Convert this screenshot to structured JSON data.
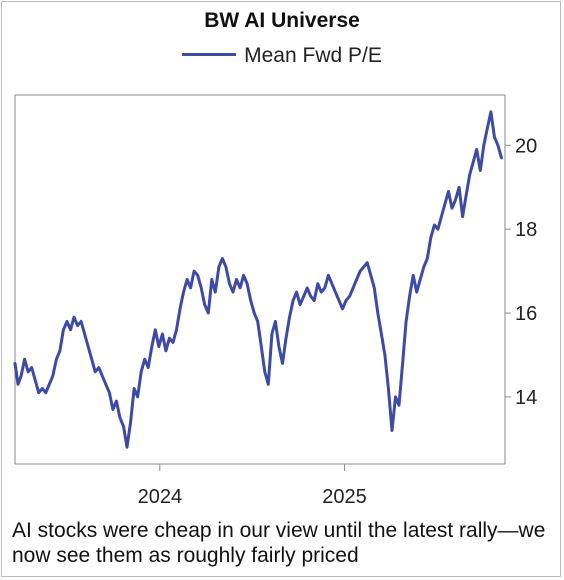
{
  "chart_data": {
    "type": "line",
    "title": "BW AI Universe",
    "xlabel": "",
    "ylabel": "",
    "legend": {
      "position": "top-center"
    },
    "grid": false,
    "xlim": [
      "2023-03-20",
      "2025-11-15"
    ],
    "ylim": [
      12.4,
      21.2
    ],
    "x_ticks": [
      {
        "date": "2024-01-01",
        "label": "2024"
      },
      {
        "date": "2025-01-01",
        "label": "2025"
      }
    ],
    "y_ticks": [
      {
        "value": 14,
        "label": "14"
      },
      {
        "value": 16,
        "label": "16"
      },
      {
        "value": 18,
        "label": "18"
      },
      {
        "value": 20,
        "label": "20"
      }
    ],
    "series": [
      {
        "name": "Mean Fwd P/E",
        "color": "#3d4aa6",
        "points": [
          [
            "2023-03-20",
            14.8
          ],
          [
            "2023-03-26",
            14.3
          ],
          [
            "2023-04-01",
            14.5
          ],
          [
            "2023-04-08",
            14.9
          ],
          [
            "2023-04-15",
            14.6
          ],
          [
            "2023-04-22",
            14.7
          ],
          [
            "2023-04-29",
            14.4
          ],
          [
            "2023-05-06",
            14.1
          ],
          [
            "2023-05-13",
            14.2
          ],
          [
            "2023-05-20",
            14.1
          ],
          [
            "2023-05-27",
            14.3
          ],
          [
            "2023-06-03",
            14.5
          ],
          [
            "2023-06-10",
            14.9
          ],
          [
            "2023-06-17",
            15.1
          ],
          [
            "2023-06-24",
            15.6
          ],
          [
            "2023-07-01",
            15.8
          ],
          [
            "2023-07-08",
            15.6
          ],
          [
            "2023-07-15",
            15.9
          ],
          [
            "2023-07-22",
            15.7
          ],
          [
            "2023-07-29",
            15.8
          ],
          [
            "2023-08-05",
            15.5
          ],
          [
            "2023-08-12",
            15.2
          ],
          [
            "2023-08-19",
            14.9
          ],
          [
            "2023-08-26",
            14.6
          ],
          [
            "2023-09-02",
            14.7
          ],
          [
            "2023-09-09",
            14.5
          ],
          [
            "2023-09-16",
            14.3
          ],
          [
            "2023-09-23",
            14.1
          ],
          [
            "2023-09-30",
            13.7
          ],
          [
            "2023-10-07",
            13.9
          ],
          [
            "2023-10-14",
            13.5
          ],
          [
            "2023-10-21",
            13.3
          ],
          [
            "2023-10-28",
            12.8
          ],
          [
            "2023-11-04",
            13.4
          ],
          [
            "2023-11-11",
            14.2
          ],
          [
            "2023-11-18",
            14.0
          ],
          [
            "2023-11-25",
            14.6
          ],
          [
            "2023-12-02",
            14.9
          ],
          [
            "2023-12-09",
            14.7
          ],
          [
            "2023-12-16",
            15.2
          ],
          [
            "2023-12-23",
            15.6
          ],
          [
            "2023-12-30",
            15.2
          ],
          [
            "2024-01-06",
            15.5
          ],
          [
            "2024-01-13",
            15.1
          ],
          [
            "2024-01-20",
            15.4
          ],
          [
            "2024-01-27",
            15.3
          ],
          [
            "2024-02-03",
            15.6
          ],
          [
            "2024-02-10",
            16.1
          ],
          [
            "2024-02-17",
            16.5
          ],
          [
            "2024-02-24",
            16.8
          ],
          [
            "2024-03-02",
            16.6
          ],
          [
            "2024-03-09",
            17.0
          ],
          [
            "2024-03-16",
            16.9
          ],
          [
            "2024-03-23",
            16.6
          ],
          [
            "2024-03-30",
            16.2
          ],
          [
            "2024-04-06",
            16.0
          ],
          [
            "2024-04-13",
            16.8
          ],
          [
            "2024-04-20",
            16.5
          ],
          [
            "2024-04-27",
            17.1
          ],
          [
            "2024-05-04",
            17.3
          ],
          [
            "2024-05-11",
            17.1
          ],
          [
            "2024-05-18",
            16.7
          ],
          [
            "2024-05-25",
            16.5
          ],
          [
            "2024-06-01",
            16.8
          ],
          [
            "2024-06-08",
            16.6
          ],
          [
            "2024-06-15",
            16.9
          ],
          [
            "2024-06-22",
            16.7
          ],
          [
            "2024-06-29",
            16.3
          ],
          [
            "2024-07-06",
            16.0
          ],
          [
            "2024-07-13",
            15.8
          ],
          [
            "2024-07-20",
            15.2
          ],
          [
            "2024-07-27",
            14.6
          ],
          [
            "2024-08-03",
            14.3
          ],
          [
            "2024-08-10",
            15.5
          ],
          [
            "2024-08-17",
            15.8
          ],
          [
            "2024-08-24",
            15.2
          ],
          [
            "2024-08-31",
            14.8
          ],
          [
            "2024-09-07",
            15.4
          ],
          [
            "2024-09-14",
            15.9
          ],
          [
            "2024-09-21",
            16.3
          ],
          [
            "2024-09-28",
            16.5
          ],
          [
            "2024-10-05",
            16.2
          ],
          [
            "2024-10-12",
            16.4
          ],
          [
            "2024-10-19",
            16.6
          ],
          [
            "2024-10-26",
            16.4
          ],
          [
            "2024-11-02",
            16.3
          ],
          [
            "2024-11-09",
            16.7
          ],
          [
            "2024-11-16",
            16.5
          ],
          [
            "2024-11-23",
            16.6
          ],
          [
            "2024-11-30",
            16.9
          ],
          [
            "2024-12-07",
            16.7
          ],
          [
            "2024-12-14",
            16.5
          ],
          [
            "2024-12-21",
            16.3
          ],
          [
            "2024-12-28",
            16.1
          ],
          [
            "2025-01-04",
            16.3
          ],
          [
            "2025-01-11",
            16.4
          ],
          [
            "2025-01-18",
            16.6
          ],
          [
            "2025-01-25",
            16.8
          ],
          [
            "2025-02-01",
            17.0
          ],
          [
            "2025-02-08",
            17.1
          ],
          [
            "2025-02-15",
            17.2
          ],
          [
            "2025-02-22",
            16.9
          ],
          [
            "2025-03-01",
            16.6
          ],
          [
            "2025-03-08",
            16.0
          ],
          [
            "2025-03-15",
            15.5
          ],
          [
            "2025-03-22",
            15.0
          ],
          [
            "2025-03-29",
            14.2
          ],
          [
            "2025-04-05",
            13.2
          ],
          [
            "2025-04-12",
            14.0
          ],
          [
            "2025-04-19",
            13.8
          ],
          [
            "2025-04-26",
            14.8
          ],
          [
            "2025-05-03",
            15.8
          ],
          [
            "2025-05-10",
            16.4
          ],
          [
            "2025-05-17",
            16.9
          ],
          [
            "2025-05-24",
            16.5
          ],
          [
            "2025-05-31",
            16.8
          ],
          [
            "2025-06-07",
            17.1
          ],
          [
            "2025-06-14",
            17.3
          ],
          [
            "2025-06-21",
            17.8
          ],
          [
            "2025-06-28",
            18.1
          ],
          [
            "2025-07-05",
            18.0
          ],
          [
            "2025-07-12",
            18.3
          ],
          [
            "2025-07-19",
            18.6
          ],
          [
            "2025-07-26",
            18.9
          ],
          [
            "2025-08-02",
            18.5
          ],
          [
            "2025-08-09",
            18.7
          ],
          [
            "2025-08-16",
            19.0
          ],
          [
            "2025-08-23",
            18.3
          ],
          [
            "2025-08-30",
            18.8
          ],
          [
            "2025-09-06",
            19.3
          ],
          [
            "2025-09-13",
            19.6
          ],
          [
            "2025-09-20",
            19.9
          ],
          [
            "2025-09-27",
            19.4
          ],
          [
            "2025-10-04",
            20.0
          ],
          [
            "2025-10-11",
            20.4
          ],
          [
            "2025-10-18",
            20.8
          ],
          [
            "2025-10-25",
            20.2
          ],
          [
            "2025-11-01",
            20.0
          ],
          [
            "2025-11-08",
            19.7
          ]
        ]
      }
    ]
  },
  "caption": "AI stocks were cheap in our view until the latest rally—we now see them as roughly fairly priced"
}
